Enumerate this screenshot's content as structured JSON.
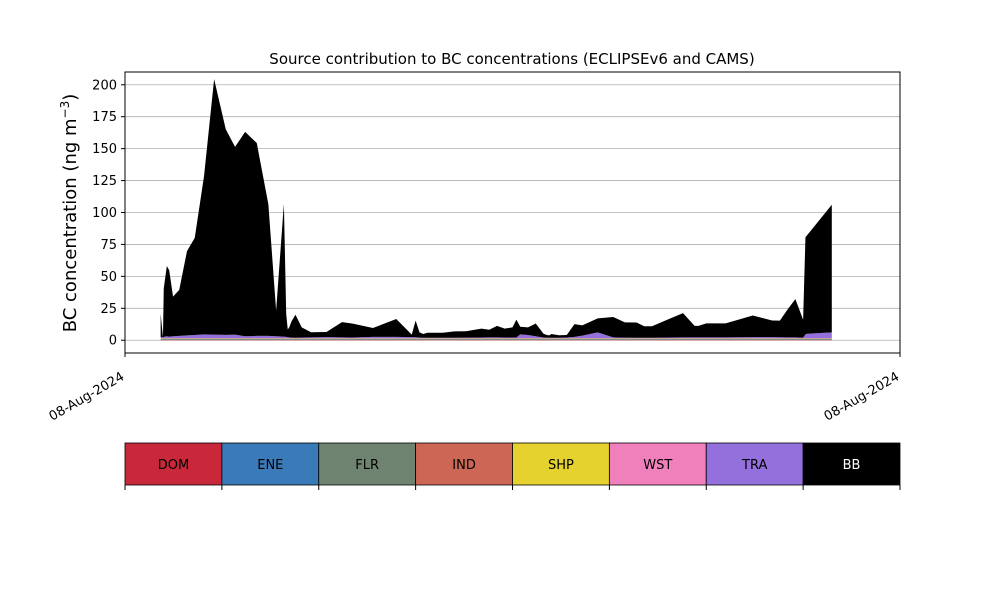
{
  "chart_data": {
    "type": "area",
    "title": "Source contribution to BC concentrations (ECLIPSEv6 and CAMS)",
    "ylabel": "BC concentration (ng m",
    "ylabel_superscript": "−3",
    "ylabel_suffix": ")",
    "ylim": [
      -10,
      210
    ],
    "yticks": [
      0,
      25,
      50,
      75,
      100,
      125,
      150,
      175,
      200
    ],
    "xtick_labels": [
      "08-Aug-2024",
      "08-Aug-2024"
    ],
    "grid": "horizontal",
    "stacked": true,
    "x": [
      0.046,
      0.049,
      0.05,
      0.054,
      0.057,
      0.062,
      0.07,
      0.08,
      0.09,
      0.102,
      0.115,
      0.13,
      0.142,
      0.155,
      0.17,
      0.185,
      0.195,
      0.205,
      0.208,
      0.21,
      0.212,
      0.215,
      0.22,
      0.228,
      0.24,
      0.26,
      0.28,
      0.293,
      0.32,
      0.35,
      0.37,
      0.375,
      0.38,
      0.385,
      0.39,
      0.41,
      0.425,
      0.44,
      0.46,
      0.47,
      0.48,
      0.49,
      0.5,
      0.505,
      0.51,
      0.52,
      0.53,
      0.54,
      0.545,
      0.548,
      0.55,
      0.56,
      0.57,
      0.58,
      0.59,
      0.61,
      0.63,
      0.645,
      0.66,
      0.67,
      0.68,
      0.7,
      0.72,
      0.735,
      0.74,
      0.75,
      0.775,
      0.81,
      0.835,
      0.845,
      0.855,
      0.865,
      0.875,
      0.878,
      0.88,
      0.912
    ],
    "series": [
      {
        "name": "DOM",
        "color": "#c8283a",
        "values": [
          0.3,
          0.3,
          0.3,
          0.3,
          0.3,
          0.3,
          0.3,
          0.3,
          0.3,
          0.3,
          0.3,
          0.3,
          0.3,
          0.3,
          0.3,
          0.3,
          0.3,
          0.3,
          0.3,
          0.3,
          0.3,
          0.3,
          0.3,
          0.3,
          0.3,
          0.3,
          0.3,
          0.3,
          0.3,
          0.3,
          0.3,
          0.3,
          0.3,
          0.3,
          0.3,
          0.3,
          0.3,
          0.3,
          0.3,
          0.3,
          0.3,
          0.3,
          0.3,
          0.3,
          0.3,
          0.3,
          0.3,
          0.3,
          0.3,
          0.3,
          0.3,
          0.3,
          0.3,
          0.3,
          0.3,
          0.3,
          0.3,
          0.3,
          0.3,
          0.3,
          0.3,
          0.3,
          0.3,
          0.3,
          0.3,
          0.3,
          0.3,
          0.3,
          0.3,
          0.3,
          0.3,
          0.3,
          0.3,
          0.3,
          0.3,
          0.3
        ]
      },
      {
        "name": "ENE",
        "color": "#3a7ab8",
        "values": [
          0.1,
          0.1,
          0.1,
          0.1,
          0.1,
          0.1,
          0.1,
          0.1,
          0.1,
          0.1,
          0.1,
          0.1,
          0.1,
          0.1,
          0.1,
          0.1,
          0.1,
          0.1,
          0.1,
          0.1,
          0.1,
          0.1,
          0.1,
          0.1,
          0.1,
          0.1,
          0.1,
          0.1,
          0.1,
          0.1,
          0.1,
          0.1,
          0.1,
          0.1,
          0.1,
          0.1,
          0.1,
          0.1,
          0.1,
          0.1,
          0.1,
          0.1,
          0.1,
          0.1,
          0.1,
          0.1,
          0.1,
          0.1,
          0.1,
          0.1,
          0.1,
          0.1,
          0.1,
          0.1,
          0.1,
          0.1,
          0.1,
          0.1,
          0.1,
          0.1,
          0.1,
          0.1,
          0.1,
          0.1,
          0.1,
          0.1,
          0.1,
          0.1,
          0.1,
          0.1,
          0.1,
          0.1,
          0.1,
          0.1,
          0.1,
          0.1
        ]
      },
      {
        "name": "FLR",
        "color": "#6e8470",
        "values": [
          0.8,
          0.8,
          0.8,
          0.8,
          0.8,
          0.8,
          0.8,
          0.8,
          0.8,
          0.8,
          0.8,
          0.8,
          0.8,
          0.8,
          0.8,
          0.8,
          0.8,
          0.8,
          0.8,
          0.8,
          0.8,
          0.8,
          0.8,
          0.8,
          0.8,
          0.8,
          0.8,
          0.8,
          0.8,
          0.8,
          0.8,
          0.8,
          0.8,
          0.8,
          0.8,
          0.8,
          0.8,
          0.8,
          0.8,
          0.8,
          0.8,
          0.8,
          0.8,
          0.8,
          0.8,
          0.8,
          0.8,
          0.8,
          0.8,
          0.8,
          0.8,
          0.8,
          0.8,
          0.8,
          0.8,
          0.8,
          0.8,
          0.8,
          0.8,
          0.8,
          0.8,
          0.8,
          0.8,
          0.8,
          0.8,
          0.8,
          0.8,
          0.8,
          0.8,
          0.8,
          0.8,
          0.8,
          0.8,
          0.8,
          0.8,
          0.8
        ]
      },
      {
        "name": "IND",
        "color": "#cc6655",
        "values": [
          0.2,
          0.2,
          0.2,
          0.2,
          0.2,
          0.2,
          0.2,
          0.2,
          0.2,
          0.2,
          0.2,
          0.2,
          0.2,
          0.2,
          0.2,
          0.2,
          0.2,
          0.2,
          0.2,
          0.2,
          0.2,
          0.2,
          0.2,
          0.2,
          0.2,
          0.2,
          0.2,
          0.2,
          0.2,
          0.2,
          0.2,
          0.2,
          0.2,
          0.2,
          0.2,
          0.2,
          0.2,
          0.2,
          0.2,
          0.2,
          0.2,
          0.2,
          0.2,
          0.2,
          0.2,
          0.2,
          0.2,
          0.2,
          0.2,
          0.2,
          0.2,
          0.2,
          0.2,
          0.2,
          0.2,
          0.2,
          0.2,
          0.2,
          0.2,
          0.2,
          0.2,
          0.2,
          0.2,
          0.2,
          0.2,
          0.2,
          0.2,
          0.2,
          0.2,
          0.2,
          0.2,
          0.2,
          0.2,
          0.2,
          0.2,
          0.2
        ]
      },
      {
        "name": "SHP",
        "color": "#e6d22e",
        "values": [
          0.1,
          0.1,
          0.1,
          0.1,
          0.1,
          0.1,
          0.1,
          0.1,
          0.1,
          0.1,
          0.1,
          0.1,
          0.1,
          0.1,
          0.1,
          0.1,
          0.1,
          0.1,
          0.1,
          0.1,
          0.1,
          0.1,
          0.1,
          0.1,
          0.1,
          0.1,
          0.1,
          0.1,
          0.1,
          0.1,
          0.1,
          0.1,
          0.1,
          0.1,
          0.1,
          0.1,
          0.1,
          0.1,
          0.1,
          0.1,
          0.1,
          0.1,
          0.1,
          0.1,
          0.1,
          0.1,
          0.1,
          0.1,
          0.1,
          0.1,
          0.1,
          0.1,
          0.1,
          0.1,
          0.1,
          0.1,
          0.1,
          0.1,
          0.1,
          0.1,
          0.1,
          0.1,
          0.1,
          0.1,
          0.1,
          0.1,
          0.1,
          0.1,
          0.1,
          0.1,
          0.1,
          0.1,
          0.1,
          0.1,
          0.1,
          0.1
        ]
      },
      {
        "name": "WST",
        "color": "#f080bc",
        "values": [
          0.1,
          0.1,
          0.1,
          0.1,
          0.1,
          0.1,
          0.1,
          0.1,
          0.1,
          0.1,
          0.1,
          0.1,
          0.1,
          0.1,
          0.1,
          0.1,
          0.1,
          0.1,
          0.1,
          0.1,
          0.1,
          0.1,
          0.1,
          0.1,
          0.1,
          0.1,
          0.1,
          0.1,
          0.1,
          0.1,
          0.1,
          0.1,
          0.1,
          0.1,
          0.1,
          0.1,
          0.1,
          0.1,
          0.1,
          0.1,
          0.1,
          0.1,
          0.1,
          0.1,
          0.1,
          0.1,
          0.1,
          0.1,
          0.1,
          0.1,
          0.1,
          0.1,
          0.1,
          0.1,
          0.1,
          0.1,
          0.1,
          0.1,
          0.1,
          0.1,
          0.1,
          0.1,
          0.1,
          0.1,
          0.1,
          0.1,
          0.1,
          0.1,
          0.1,
          0.1,
          0.1,
          0.1,
          0.1,
          0.1,
          0.1,
          0.1
        ]
      },
      {
        "name": "TRA",
        "color": "#9370db",
        "values": [
          1.0,
          0.6,
          1.0,
          1.5,
          1.2,
          1.5,
          1.8,
          2.2,
          2.5,
          3.0,
          2.8,
          2.6,
          2.8,
          1.5,
          1.8,
          1.8,
          1.5,
          1.2,
          1.0,
          0.8,
          0.6,
          0.4,
          0.3,
          0.5,
          0.6,
          0.8,
          0.6,
          0.5,
          1.0,
          1.0,
          0.8,
          0.7,
          0.5,
          0.3,
          0.3,
          0.3,
          0.3,
          0.4,
          0.5,
          0.6,
          0.6,
          0.5,
          0.5,
          0.5,
          3.0,
          2.5,
          1.5,
          0.5,
          0.4,
          0.3,
          0.3,
          0.3,
          0.5,
          1.0,
          2.0,
          4.5,
          0.6,
          0.4,
          0.3,
          0.3,
          0.3,
          0.5,
          0.6,
          0.6,
          0.6,
          0.6,
          0.6,
          0.8,
          0.8,
          0.7,
          0.6,
          0.6,
          0.4,
          3.0,
          3.5,
          4.5
        ]
      },
      {
        "name": "BB",
        "color": "#000000",
        "values": [
          18.0,
          0.0,
          38.0,
          55.0,
          52.0,
          31.0,
          36.0,
          66.0,
          76.0,
          124.0,
          200.0,
          161.0,
          147.0,
          160.0,
          151.0,
          103.0,
          20.0,
          104.0,
          18.0,
          6.0,
          8.0,
          13.0,
          18.0,
          8.0,
          4.0,
          4.0,
          12.0,
          11.0,
          7.0,
          14.0,
          2.0,
          13.0,
          4.0,
          3.0,
          4.0,
          4.0,
          5.0,
          5.0,
          7.0,
          6.0,
          9.0,
          7.0,
          8.0,
          14.0,
          6.0,
          6.0,
          10.0,
          3.0,
          2.0,
          2.0,
          3.0,
          2.0,
          2.0,
          10.0,
          8.0,
          11.0,
          16.0,
          12.0,
          12.0,
          9.0,
          9.0,
          14.0,
          19.0,
          9.0,
          9.0,
          11.0,
          11.0,
          17.0,
          13.0,
          13.0,
          22.0,
          30.0,
          14.0,
          76.0,
          77.0,
          100.0
        ]
      }
    ],
    "legend": {
      "placement": "bottom",
      "entries": [
        {
          "label": "DOM",
          "color": "#c8283a",
          "text_color": "#000000"
        },
        {
          "label": "ENE",
          "color": "#3a7ab8",
          "text_color": "#000000"
        },
        {
          "label": "FLR",
          "color": "#6e8470",
          "text_color": "#000000"
        },
        {
          "label": "IND",
          "color": "#cc6655",
          "text_color": "#000000"
        },
        {
          "label": "SHP",
          "color": "#e6d22e",
          "text_color": "#000000"
        },
        {
          "label": "WST",
          "color": "#f080bc",
          "text_color": "#000000"
        },
        {
          "label": "TRA",
          "color": "#9370db",
          "text_color": "#000000"
        },
        {
          "label": "BB",
          "color": "#000000",
          "text_color": "#ffffff"
        }
      ]
    }
  }
}
